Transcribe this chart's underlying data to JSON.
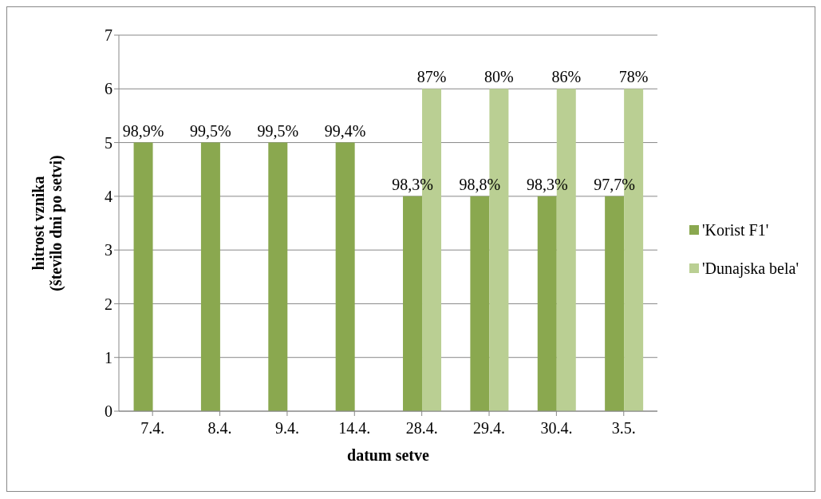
{
  "chart_data": {
    "type": "bar",
    "xlabel": "datum setve",
    "ylabel": "hitrost vznika\n(število dni po setvi)",
    "categories": [
      "7.4.",
      "8.4.",
      "9.4.",
      "14.4.",
      "28.4.",
      "29.4.",
      "30.4.",
      "3.5."
    ],
    "series": [
      {
        "name": "'Korist F1'",
        "color": "#8aa84f",
        "values": [
          5,
          5,
          5,
          5,
          4,
          4,
          4,
          4
        ]
      },
      {
        "name": "'Dunajska bela'",
        "color": "#bacf93",
        "values": [
          null,
          null,
          null,
          null,
          6,
          6,
          6,
          6
        ]
      }
    ],
    "annotations": [
      {
        "text": "98,9%",
        "x": "7.4.",
        "y": 5
      },
      {
        "text": "99,5%",
        "x": "8.4.",
        "y": 5
      },
      {
        "text": "99,5%",
        "x": "9.4.",
        "y": 5
      },
      {
        "text": "99,4%",
        "x": "14.4.",
        "y": 5
      },
      {
        "text": "98,3%",
        "x": "28.4.",
        "y": 4
      },
      {
        "text": "98,8%",
        "x": "29.4.",
        "y": 4
      },
      {
        "text": "98,3%",
        "x": "30.4.",
        "y": 4
      },
      {
        "text": "97,7%",
        "x": "3.5.",
        "y": 4
      },
      {
        "text": "87%",
        "x": "28.4.",
        "y": 6
      },
      {
        "text": "80%",
        "x": "29.4.",
        "y": 6
      },
      {
        "text": "86%",
        "x": "30.4.",
        "y": 6
      },
      {
        "text": "78%",
        "x": "3.5.",
        "y": 6
      }
    ],
    "ylim": [
      0,
      7
    ],
    "yticks": [
      0,
      1,
      2,
      3,
      4,
      5,
      6,
      7
    ],
    "grid": "y",
    "legend": "right"
  }
}
